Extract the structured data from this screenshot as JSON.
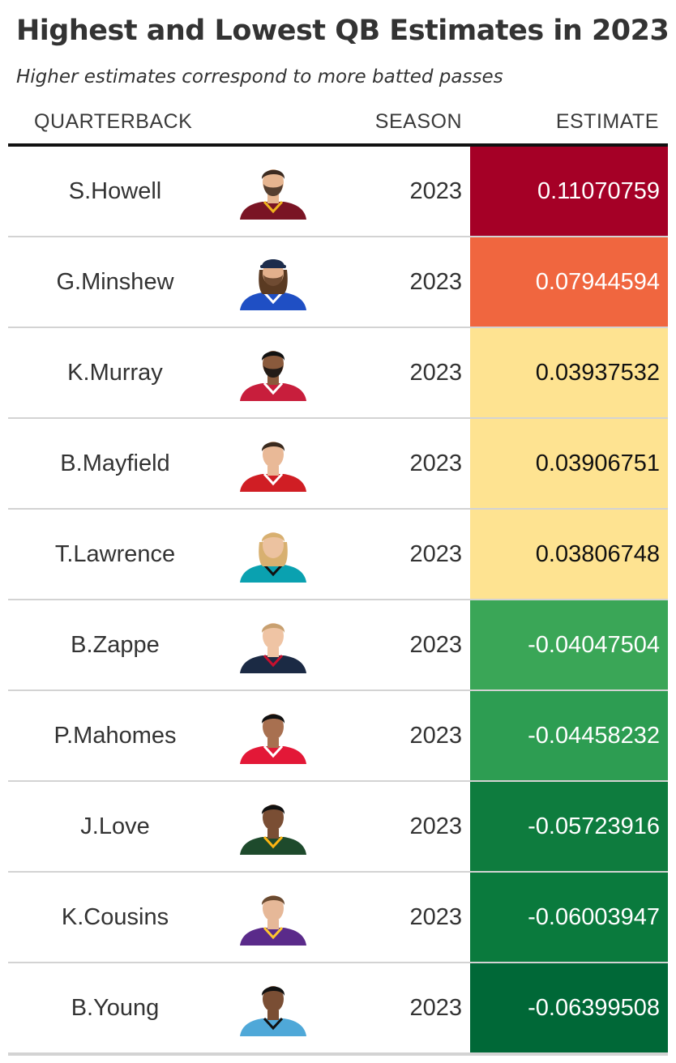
{
  "title": "Highest and Lowest QB Estimates in 2023",
  "subtitle": "Higher estimates correspond to more batted passes",
  "columns": {
    "quarterback": "QUARTERBACK",
    "season": "SEASON",
    "estimate": "ESTIMATE"
  },
  "chart_data": {
    "type": "table",
    "title": "Highest and Lowest QB Estimates in 2023",
    "subtitle": "Higher estimates correspond to more batted passes",
    "columns": [
      "QUARTERBACK",
      "SEASON",
      "ESTIMATE"
    ],
    "rows": [
      {
        "quarterback": "S.Howell",
        "season": "2023",
        "estimate": "0.11070759",
        "value": 0.11070759,
        "cell_color": "#a50026",
        "text_color": "#ffffff",
        "jersey_color": "#7a1424",
        "jersey_trim": "#f0b41e",
        "hair_color": "#3b2a20",
        "skin_color": "#e6b590",
        "hat": false,
        "hat_color": "",
        "long_hair": false,
        "beard": true
      },
      {
        "quarterback": "G.Minshew",
        "season": "2023",
        "estimate": "0.07944594",
        "value": 0.07944594,
        "cell_color": "#f0663f",
        "text_color": "#ffffff",
        "jersey_color": "#1f4fc4",
        "jersey_trim": "#ffffff",
        "hair_color": "#5a3a22",
        "skin_color": "#e3b08c",
        "hat": true,
        "hat_color": "#1c2c4c",
        "long_hair": true,
        "beard": true
      },
      {
        "quarterback": "K.Murray",
        "season": "2023",
        "estimate": "0.03937532",
        "value": 0.03937532,
        "cell_color": "#fee391",
        "text_color": "#111111",
        "jersey_color": "#c81e3c",
        "jersey_trim": "#ffffff",
        "hair_color": "#111111",
        "skin_color": "#8a5a3c",
        "hat": false,
        "hat_color": "",
        "long_hair": false,
        "beard": true
      },
      {
        "quarterback": "B.Mayfield",
        "season": "2023",
        "estimate": "0.03906751",
        "value": 0.03906751,
        "cell_color": "#fee391",
        "text_color": "#111111",
        "jersey_color": "#d01e24",
        "jersey_trim": "#ffffff",
        "hair_color": "#3a2a1e",
        "skin_color": "#e9b997",
        "hat": false,
        "hat_color": "",
        "long_hair": false,
        "beard": false
      },
      {
        "quarterback": "T.Lawrence",
        "season": "2023",
        "estimate": "0.03806748",
        "value": 0.03806748,
        "cell_color": "#fee391",
        "text_color": "#111111",
        "jersey_color": "#0aa1b0",
        "jersey_trim": "#111111",
        "hair_color": "#d8b070",
        "skin_color": "#ecc2a0",
        "hat": false,
        "hat_color": "",
        "long_hair": true,
        "beard": false
      },
      {
        "quarterback": "B.Zappe",
        "season": "2023",
        "estimate": "-0.04047504",
        "value": -0.04047504,
        "cell_color": "#3aa657",
        "text_color": "#ffffff",
        "jersey_color": "#1b2a44",
        "jersey_trim": "#c8102e",
        "hair_color": "#c8a070",
        "skin_color": "#efc4a4",
        "hat": false,
        "hat_color": "",
        "long_hair": false,
        "beard": false
      },
      {
        "quarterback": "P.Mahomes",
        "season": "2023",
        "estimate": "-0.04458232",
        "value": -0.04458232,
        "cell_color": "#2d9d52",
        "text_color": "#ffffff",
        "jersey_color": "#e31837",
        "jersey_trim": "#ffffff",
        "hair_color": "#111111",
        "skin_color": "#a87050",
        "hat": false,
        "hat_color": "",
        "long_hair": false,
        "beard": false
      },
      {
        "quarterback": "J.Love",
        "season": "2023",
        "estimate": "-0.05723916",
        "value": -0.05723916,
        "cell_color": "#0e7c3e",
        "text_color": "#ffffff",
        "jersey_color": "#1e4a2c",
        "jersey_trim": "#ffb612",
        "hair_color": "#111111",
        "skin_color": "#7a4e34",
        "hat": false,
        "hat_color": "",
        "long_hair": false,
        "beard": false
      },
      {
        "quarterback": "K.Cousins",
        "season": "2023",
        "estimate": "-0.06003947",
        "value": -0.06003947,
        "cell_color": "#0a7a3d",
        "text_color": "#ffffff",
        "jersey_color": "#5a2a8a",
        "jersey_trim": "#ffc62f",
        "hair_color": "#6a4a30",
        "skin_color": "#e6b898",
        "hat": false,
        "hat_color": "",
        "long_hair": false,
        "beard": false
      },
      {
        "quarterback": "B.Young",
        "season": "2023",
        "estimate": "-0.06399508",
        "value": -0.06399508,
        "cell_color": "#006837",
        "text_color": "#ffffff",
        "jersey_color": "#4fa8d8",
        "jersey_trim": "#111111",
        "hair_color": "#111111",
        "skin_color": "#7a4e34",
        "hat": false,
        "hat_color": "",
        "long_hair": false,
        "beard": false
      }
    ]
  }
}
